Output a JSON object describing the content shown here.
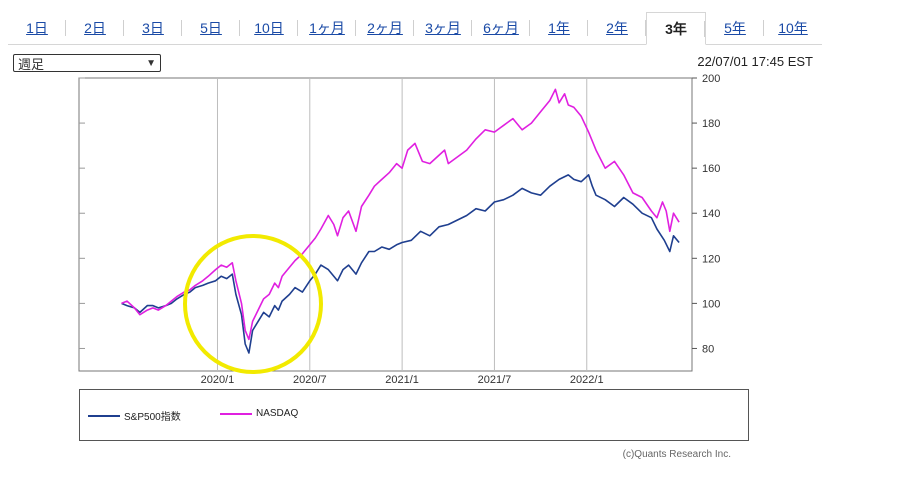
{
  "tabs": [
    {
      "label": "1日",
      "active": false
    },
    {
      "label": "2日",
      "active": false
    },
    {
      "label": "3日",
      "active": false
    },
    {
      "label": "5日",
      "active": false
    },
    {
      "label": "10日",
      "active": false
    },
    {
      "label": "1ヶ月",
      "active": false
    },
    {
      "label": "2ヶ月",
      "active": false
    },
    {
      "label": "3ヶ月",
      "active": false
    },
    {
      "label": "6ヶ月",
      "active": false
    },
    {
      "label": "1年",
      "active": false
    },
    {
      "label": "2年",
      "active": false
    },
    {
      "label": "3年",
      "active": true
    },
    {
      "label": "5年",
      "active": false
    },
    {
      "label": "10年",
      "active": false
    }
  ],
  "period_select": {
    "selected": "週足"
  },
  "timestamp": "22/07/01 17:45 EST",
  "credit": "(c)Quants Research Inc.",
  "colors": {
    "sp500": "#1f3f8f",
    "nasdaq": "#e020e0",
    "highlight": "#f2ea00"
  },
  "chart_data": {
    "type": "line",
    "title": "",
    "xlabel": "",
    "ylabel": "",
    "ylim": [
      70,
      200
    ],
    "yticks": [
      80,
      100,
      120,
      140,
      160,
      180,
      200
    ],
    "xticks": [
      {
        "label": "2020/1",
        "t": 0.25
      },
      {
        "label": "2020/7",
        "t": 0.75
      },
      {
        "label": "2021/1",
        "t": 1.25
      },
      {
        "label": "2021/7",
        "t": 1.75
      },
      {
        "label": "2022/1",
        "t": 2.25
      }
    ],
    "xlim": [
      -0.5,
      2.82
    ],
    "grid": true,
    "legend": "bottom",
    "series": [
      {
        "name": "S&P500指数",
        "color": "#1f3f8f",
        "points": [
          [
            -0.27,
            100
          ],
          [
            -0.24,
            99
          ],
          [
            -0.2,
            98
          ],
          [
            -0.17,
            96
          ],
          [
            -0.13,
            99
          ],
          [
            -0.1,
            99
          ],
          [
            -0.07,
            98
          ],
          [
            -0.03,
            99
          ],
          [
            0,
            100
          ],
          [
            0.03,
            102
          ],
          [
            0.07,
            104
          ],
          [
            0.1,
            105
          ],
          [
            0.13,
            107
          ],
          [
            0.17,
            108
          ],
          [
            0.2,
            109
          ],
          [
            0.24,
            110
          ],
          [
            0.27,
            112
          ],
          [
            0.3,
            111
          ],
          [
            0.33,
            113
          ],
          [
            0.35,
            104
          ],
          [
            0.38,
            95
          ],
          [
            0.4,
            82
          ],
          [
            0.42,
            78
          ],
          [
            0.44,
            88
          ],
          [
            0.47,
            92
          ],
          [
            0.5,
            96
          ],
          [
            0.53,
            94
          ],
          [
            0.56,
            99
          ],
          [
            0.58,
            97
          ],
          [
            0.6,
            101
          ],
          [
            0.64,
            104
          ],
          [
            0.67,
            107
          ],
          [
            0.71,
            105
          ],
          [
            0.75,
            110
          ],
          [
            0.78,
            113
          ],
          [
            0.81,
            117
          ],
          [
            0.85,
            115
          ],
          [
            0.88,
            112
          ],
          [
            0.9,
            110
          ],
          [
            0.93,
            115
          ],
          [
            0.96,
            117
          ],
          [
            1.0,
            113
          ],
          [
            1.03,
            118
          ],
          [
            1.07,
            123
          ],
          [
            1.1,
            123
          ],
          [
            1.14,
            125
          ],
          [
            1.18,
            124
          ],
          [
            1.22,
            126
          ],
          [
            1.25,
            127
          ],
          [
            1.3,
            128
          ],
          [
            1.35,
            132
          ],
          [
            1.4,
            130
          ],
          [
            1.45,
            134
          ],
          [
            1.5,
            135
          ],
          [
            1.55,
            137
          ],
          [
            1.6,
            139
          ],
          [
            1.65,
            142
          ],
          [
            1.7,
            141
          ],
          [
            1.75,
            145
          ],
          [
            1.8,
            146
          ],
          [
            1.85,
            148
          ],
          [
            1.9,
            151
          ],
          [
            1.95,
            149
          ],
          [
            2.0,
            148
          ],
          [
            2.05,
            152
          ],
          [
            2.1,
            155
          ],
          [
            2.15,
            157
          ],
          [
            2.18,
            155
          ],
          [
            2.22,
            154
          ],
          [
            2.26,
            157
          ],
          [
            2.28,
            152
          ],
          [
            2.3,
            148
          ],
          [
            2.35,
            146
          ],
          [
            2.4,
            143
          ],
          [
            2.45,
            147
          ],
          [
            2.5,
            144
          ],
          [
            2.55,
            140
          ],
          [
            2.6,
            138
          ],
          [
            2.63,
            133
          ],
          [
            2.67,
            128
          ],
          [
            2.7,
            123
          ],
          [
            2.72,
            130
          ],
          [
            2.75,
            127
          ]
        ]
      },
      {
        "name": "NASDAQ",
        "color": "#e020e0",
        "points": [
          [
            -0.27,
            100
          ],
          [
            -0.24,
            101
          ],
          [
            -0.2,
            98
          ],
          [
            -0.17,
            95
          ],
          [
            -0.13,
            97
          ],
          [
            -0.1,
            98
          ],
          [
            -0.07,
            97
          ],
          [
            -0.03,
            99
          ],
          [
            0,
            101
          ],
          [
            0.03,
            103
          ],
          [
            0.07,
            105
          ],
          [
            0.1,
            106
          ],
          [
            0.13,
            108
          ],
          [
            0.17,
            110
          ],
          [
            0.2,
            112
          ],
          [
            0.24,
            115
          ],
          [
            0.27,
            117
          ],
          [
            0.3,
            116
          ],
          [
            0.33,
            118
          ],
          [
            0.35,
            110
          ],
          [
            0.38,
            100
          ],
          [
            0.4,
            88
          ],
          [
            0.42,
            84
          ],
          [
            0.44,
            92
          ],
          [
            0.47,
            97
          ],
          [
            0.5,
            102
          ],
          [
            0.53,
            104
          ],
          [
            0.56,
            109
          ],
          [
            0.58,
            107
          ],
          [
            0.6,
            112
          ],
          [
            0.64,
            116
          ],
          [
            0.67,
            119
          ],
          [
            0.71,
            122
          ],
          [
            0.75,
            126
          ],
          [
            0.78,
            129
          ],
          [
            0.81,
            133
          ],
          [
            0.85,
            139
          ],
          [
            0.88,
            135
          ],
          [
            0.9,
            130
          ],
          [
            0.93,
            138
          ],
          [
            0.96,
            141
          ],
          [
            1.0,
            132
          ],
          [
            1.03,
            143
          ],
          [
            1.07,
            148
          ],
          [
            1.1,
            152
          ],
          [
            1.14,
            155
          ],
          [
            1.18,
            158
          ],
          [
            1.22,
            162
          ],
          [
            1.25,
            160
          ],
          [
            1.28,
            168
          ],
          [
            1.32,
            171
          ],
          [
            1.36,
            163
          ],
          [
            1.4,
            162
          ],
          [
            1.44,
            165
          ],
          [
            1.48,
            168
          ],
          [
            1.5,
            162
          ],
          [
            1.55,
            165
          ],
          [
            1.6,
            168
          ],
          [
            1.65,
            173
          ],
          [
            1.7,
            177
          ],
          [
            1.75,
            176
          ],
          [
            1.8,
            179
          ],
          [
            1.85,
            182
          ],
          [
            1.9,
            177
          ],
          [
            1.95,
            180
          ],
          [
            2.0,
            185
          ],
          [
            2.05,
            190
          ],
          [
            2.08,
            195
          ],
          [
            2.1,
            189
          ],
          [
            2.13,
            193
          ],
          [
            2.15,
            188
          ],
          [
            2.18,
            187
          ],
          [
            2.22,
            183
          ],
          [
            2.26,
            176
          ],
          [
            2.3,
            168
          ],
          [
            2.35,
            160
          ],
          [
            2.4,
            163
          ],
          [
            2.45,
            157
          ],
          [
            2.5,
            149
          ],
          [
            2.55,
            147
          ],
          [
            2.6,
            141
          ],
          [
            2.63,
            138
          ],
          [
            2.66,
            145
          ],
          [
            2.68,
            141
          ],
          [
            2.7,
            132
          ],
          [
            2.72,
            140
          ],
          [
            2.75,
            136
          ]
        ]
      }
    ]
  }
}
